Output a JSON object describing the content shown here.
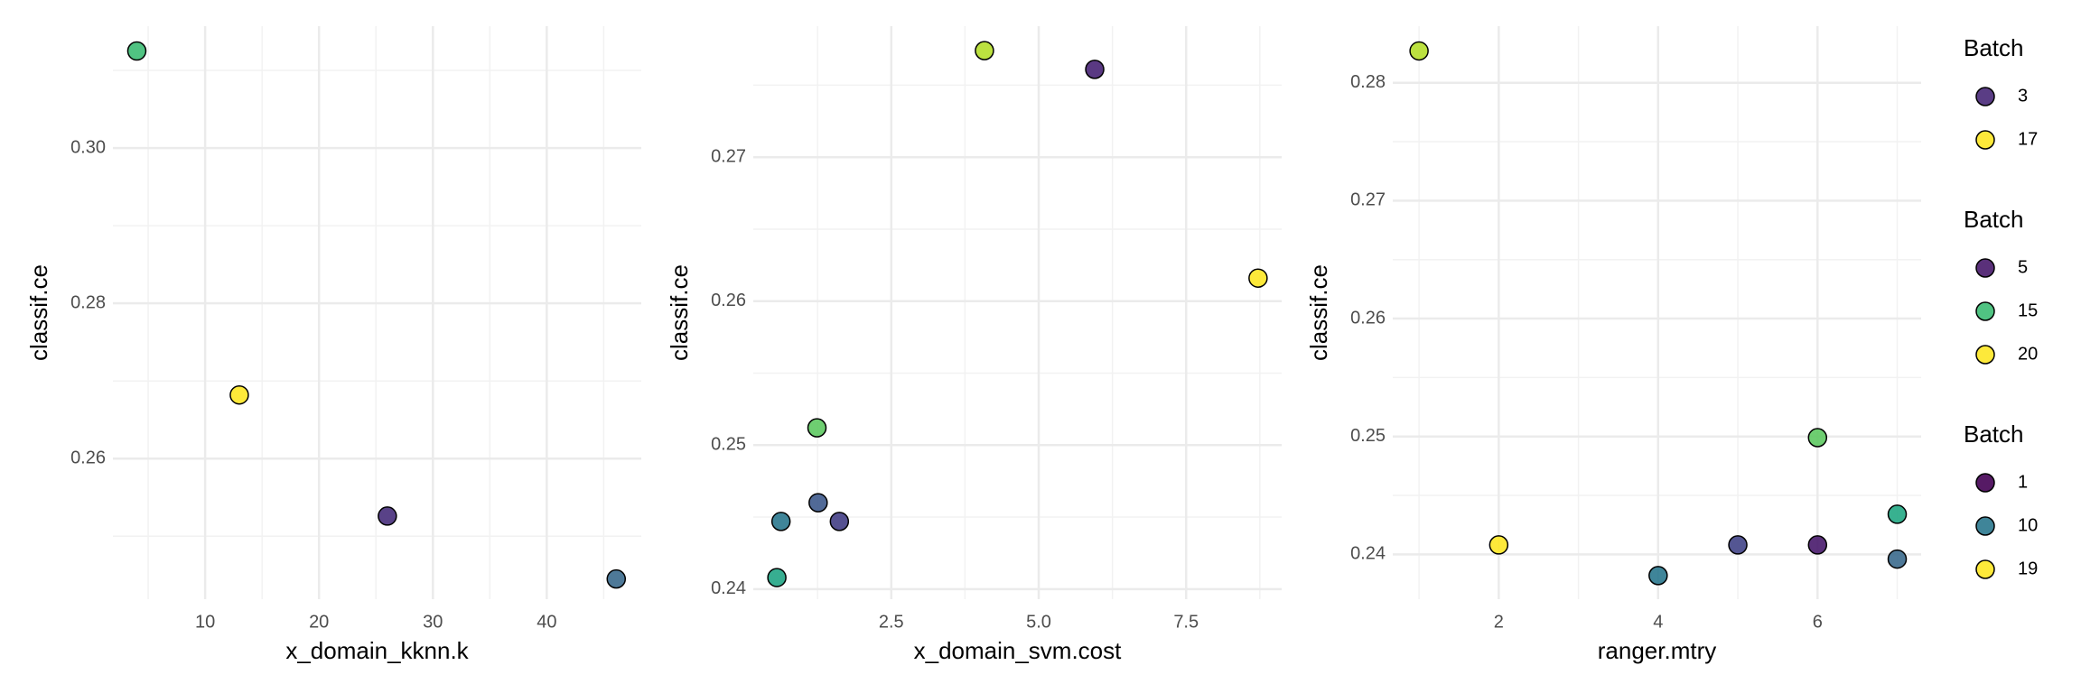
{
  "chart_data": [
    {
      "type": "scatter",
      "x_label": "x_domain_kknn.k",
      "y_label": "classif.ce",
      "xlim": [
        1.9,
        48.3
      ],
      "ylim": [
        0.2419,
        0.3157
      ],
      "xticks": [
        10,
        20,
        30,
        40
      ],
      "yticks": [
        {
          "value": 0.3,
          "label": "0.30"
        },
        0.28,
        0.26
      ],
      "x": [
        4,
        13,
        26,
        46.1
      ],
      "y": [
        0.3125,
        0.2682,
        0.2526,
        0.2445
      ],
      "colors": [
        "#3dbc74",
        "#fde725",
        "#472d7b",
        "#3b6a8d"
      ]
    },
    {
      "type": "scatter",
      "x_label": "x_domain_svm.cost",
      "y_label": "classif.ce",
      "xlim": [
        0.16,
        9.12
      ],
      "ylim": [
        0.2393,
        0.2791
      ],
      "xticks": [
        2.5,
        {
          "value": 5,
          "label": "5.0"
        },
        7.5
      ],
      "yticks": [
        0.27,
        0.26,
        0.25,
        0.24
      ],
      "x": [
        4.08,
        5.95,
        8.72,
        1.24,
        0.63,
        1.26,
        1.62,
        0.56
      ],
      "y": [
        0.2774,
        0.2761,
        0.2616,
        0.2512,
        0.2447,
        0.246,
        0.2447,
        0.2408
      ],
      "colors": [
        "#b5de2b",
        "#482475",
        "#fde725",
        "#5ec962",
        "#2a788e",
        "#3e5a8c",
        "#433e85",
        "#21a585"
      ]
    },
    {
      "type": "scatter",
      "x_label": "ranger.mtry",
      "y_label": "classif.ce",
      "xlim": [
        0.67,
        7.3
      ],
      "ylim": [
        0.2362,
        0.2848
      ],
      "xticks": [
        2,
        4,
        6
      ],
      "yticks": [
        0.28,
        0.27,
        0.26,
        0.25,
        0.24
      ],
      "x": [
        1,
        2,
        4,
        5,
        6,
        6,
        7,
        7
      ],
      "y": [
        0.2827,
        0.2408,
        0.2382,
        0.2408,
        0.2408,
        0.2499,
        0.2434,
        0.2396
      ],
      "colors": [
        "#b5de2b",
        "#fde725",
        "#2a788e",
        "#414487",
        "#481a6c",
        "#5ec962",
        "#22a884",
        "#3b6a8d"
      ]
    }
  ],
  "legends": [
    {
      "title": "Batch",
      "labels": [
        3,
        17
      ],
      "colors": [
        "#482878",
        "#fde725"
      ]
    },
    {
      "title": "Batch",
      "labels": [
        5,
        15,
        20
      ],
      "colors": [
        "#481a6c",
        "#3dbc74",
        "#fde725"
      ]
    },
    {
      "title": "Batch",
      "labels": [
        1,
        10,
        19
      ],
      "colors": [
        "#440154",
        "#2a788e",
        "#fde725"
      ]
    }
  ]
}
